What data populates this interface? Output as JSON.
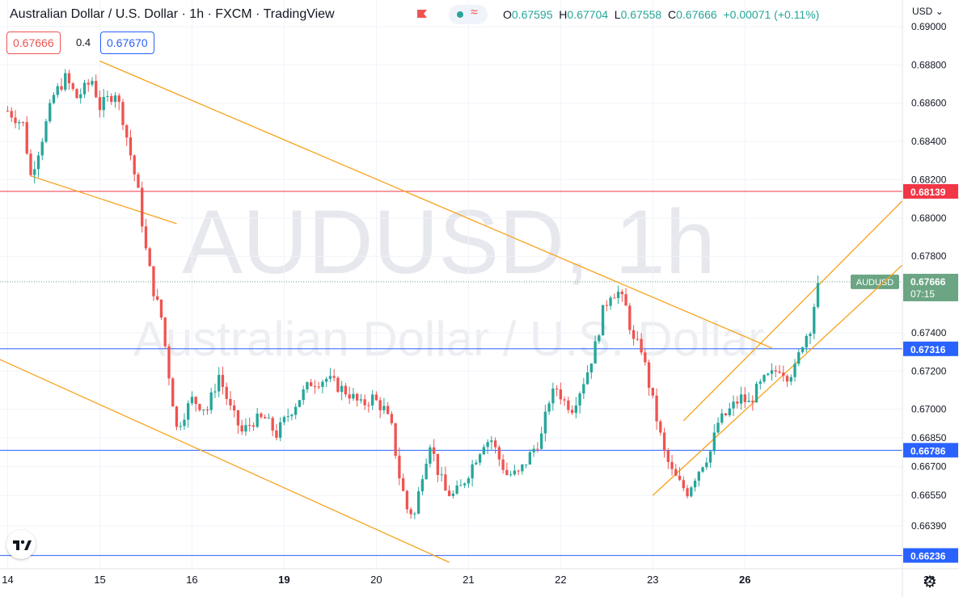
{
  "header": {
    "title": "Australian Dollar / U.S. Dollar · 1h · FXCM · TradingView",
    "ohlc": {
      "open_label": "O",
      "open": "0.67595",
      "high_label": "H",
      "high": "0.67704",
      "low_label": "L",
      "low": "0.67558",
      "close_label": "C",
      "close": "0.67666",
      "change": "+0.00071 (+0.11%)"
    },
    "sell_price": "0.67666",
    "spread": "0.4",
    "buy_price": "0.67670",
    "currency": "USD"
  },
  "colors": {
    "up": "#26a69a",
    "down": "#ef5350",
    "trendline": "#f7a21b",
    "resistance": "#f23645",
    "support": "#2962ff",
    "price_label": "#6ba583"
  },
  "chart_data": {
    "type": "candlestick",
    "symbol": "AUDUSD",
    "timeframe": "1h",
    "watermark": [
      "AUDUSD, 1h",
      "Australian Dollar / U.S. Dollar"
    ],
    "ylim": [
      0.6623,
      0.69
    ],
    "y_ticks": [
      "0.69000",
      "0.68800",
      "0.68600",
      "0.68400",
      "0.68200",
      "0.68000",
      "0.67800",
      "0.67400",
      "0.67200",
      "0.67000",
      "0.66850",
      "0.66700",
      "0.66550",
      "0.66390"
    ],
    "x_ticks": [
      {
        "label": "14",
        "bar": 0
      },
      {
        "label": "15",
        "bar": 24
      },
      {
        "label": "16",
        "bar": 48
      },
      {
        "label": "19",
        "bar": 72
      },
      {
        "label": "20",
        "bar": 96
      },
      {
        "label": "21",
        "bar": 120
      },
      {
        "label": "22",
        "bar": 144
      },
      {
        "label": "23",
        "bar": 168
      },
      {
        "label": "26",
        "bar": 192
      },
      {
        "label": "28",
        "bar": 240
      }
    ],
    "bold_x_ticks": [
      "19",
      "26"
    ],
    "x_range_bars": [
      -2,
      233
    ],
    "last_bar": 211,
    "horizontal_levels": [
      {
        "value": 0.68139,
        "label": "0.68139",
        "color": "#f23645"
      },
      {
        "value": 0.67316,
        "label": "0.67316",
        "color": "#2962ff"
      },
      {
        "value": 0.66786,
        "label": "0.66786",
        "color": "#2962ff"
      },
      {
        "value": 0.66236,
        "label": "0.66236",
        "color": "#2962ff"
      }
    ],
    "current_price": {
      "value": 0.67666,
      "label": "0.67666",
      "symbol_tag": "AUDUSD",
      "countdown": "07:15"
    },
    "trendlines": [
      {
        "x1": 24,
        "y1": 0.6882,
        "x2": 199,
        "y2": 0.6732
      },
      {
        "x1": 6,
        "y1": 0.6822,
        "x2": 44,
        "y2": 0.6797
      },
      {
        "x1": -2,
        "y1": 0.6726,
        "x2": 115,
        "y2": 0.662
      },
      {
        "x1": 168,
        "y1": 0.6655,
        "x2": 236,
        "y2": 0.6781
      },
      {
        "x1": 176,
        "y1": 0.6694,
        "x2": 236,
        "y2": 0.6815
      }
    ],
    "anchors": [
      [
        0,
        0.6856
      ],
      [
        4,
        0.6849
      ],
      [
        6,
        0.6822
      ],
      [
        9,
        0.6842
      ],
      [
        12,
        0.6864
      ],
      [
        15,
        0.6873
      ],
      [
        18,
        0.6863
      ],
      [
        22,
        0.6872
      ],
      [
        24,
        0.6858
      ],
      [
        28,
        0.6866
      ],
      [
        30,
        0.6852
      ],
      [
        32,
        0.6833
      ],
      [
        34,
        0.6813
      ],
      [
        36,
        0.6783
      ],
      [
        38,
        0.6762
      ],
      [
        40,
        0.6748
      ],
      [
        42,
        0.6718
      ],
      [
        44,
        0.669
      ],
      [
        46,
        0.6698
      ],
      [
        48,
        0.6705
      ],
      [
        52,
        0.67
      ],
      [
        55,
        0.6718
      ],
      [
        58,
        0.67
      ],
      [
        61,
        0.6688
      ],
      [
        64,
        0.6694
      ],
      [
        67,
        0.6695
      ],
      [
        70,
        0.6687
      ],
      [
        73,
        0.6697
      ],
      [
        76,
        0.6706
      ],
      [
        79,
        0.6714
      ],
      [
        83,
        0.6716
      ],
      [
        86,
        0.6712
      ],
      [
        89,
        0.6708
      ],
      [
        92,
        0.6702
      ],
      [
        95,
        0.6706
      ],
      [
        98,
        0.67
      ],
      [
        100,
        0.669
      ],
      [
        102,
        0.6665
      ],
      [
        104,
        0.6648
      ],
      [
        106,
        0.6645
      ],
      [
        108,
        0.6667
      ],
      [
        110,
        0.6683
      ],
      [
        112,
        0.6668
      ],
      [
        114,
        0.6657
      ],
      [
        116,
        0.6655
      ],
      [
        118,
        0.6659
      ],
      [
        121,
        0.6671
      ],
      [
        124,
        0.6683
      ],
      [
        126,
        0.6684
      ],
      [
        128,
        0.6674
      ],
      [
        130,
        0.6666
      ],
      [
        133,
        0.6666
      ],
      [
        136,
        0.6676
      ],
      [
        139,
        0.6686
      ],
      [
        141,
        0.6705
      ],
      [
        143,
        0.6711
      ],
      [
        145,
        0.6704
      ],
      [
        147,
        0.6701
      ],
      [
        149,
        0.671
      ],
      [
        151,
        0.672
      ],
      [
        153,
        0.6733
      ],
      [
        155,
        0.6751
      ],
      [
        157,
        0.6761
      ],
      [
        159,
        0.6761
      ],
      [
        161,
        0.6753
      ],
      [
        163,
        0.6735
      ],
      [
        165,
        0.6732
      ],
      [
        167,
        0.6713
      ],
      [
        169,
        0.6695
      ],
      [
        171,
        0.6677
      ],
      [
        173,
        0.6667
      ],
      [
        175,
        0.6661
      ],
      [
        177,
        0.6657
      ],
      [
        179,
        0.6665
      ],
      [
        181,
        0.6672
      ],
      [
        183,
        0.6678
      ],
      [
        185,
        0.6693
      ],
      [
        187,
        0.6697
      ],
      [
        189,
        0.6702
      ],
      [
        191,
        0.6706
      ],
      [
        193,
        0.6703
      ],
      [
        195,
        0.671
      ],
      [
        197,
        0.6715
      ],
      [
        199,
        0.6718
      ],
      [
        201,
        0.6722
      ],
      [
        203,
        0.6718
      ],
      [
        205,
        0.6721
      ],
      [
        207,
        0.6735
      ],
      [
        209,
        0.6743
      ],
      [
        211,
        0.6766
      ]
    ]
  },
  "toolbar": {
    "logo": "tradingview-logo",
    "settings_icon": "gear-icon"
  }
}
